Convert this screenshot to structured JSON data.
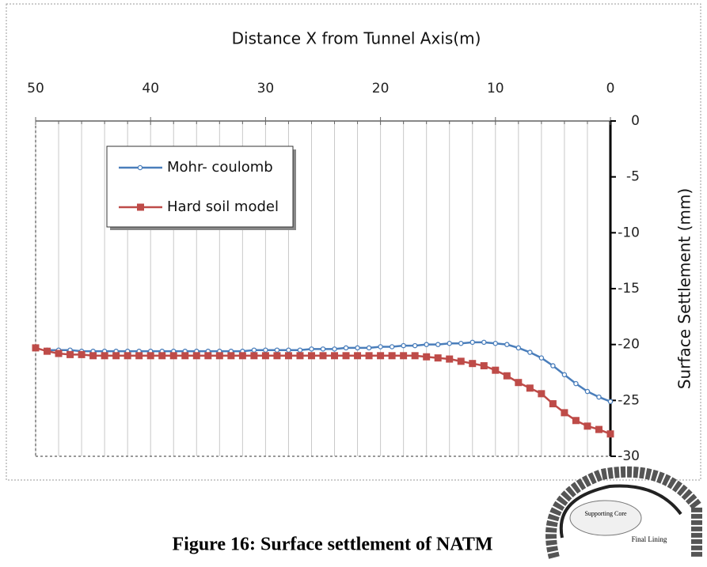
{
  "chart_data": {
    "type": "line",
    "title": "Distance X from Tunnel Axis(m)",
    "y_label": "Surface Settlement (mm)",
    "xlim": [
      50,
      0
    ],
    "xticks": [
      50,
      40,
      30,
      20,
      10,
      0
    ],
    "xminorticks": [
      48,
      46,
      44,
      42,
      38,
      36,
      34,
      32,
      28,
      26,
      24,
      22,
      18,
      16,
      14,
      12,
      8,
      6,
      4,
      2
    ],
    "ylim": [
      0,
      -30
    ],
    "yticks": [
      0,
      -5,
      -10,
      -15,
      -20,
      -25,
      -30
    ],
    "grid": true,
    "legend": "upper left",
    "series": [
      {
        "name": "Mohr- coulomb",
        "color": "#4a7ebb",
        "marker": "circle",
        "x": [
          49,
          48,
          47,
          46,
          45,
          44,
          43,
          42,
          41,
          40,
          39,
          38,
          37,
          36,
          35,
          34,
          33,
          32,
          31,
          30,
          29,
          28,
          27,
          26,
          25,
          24,
          23,
          22,
          21,
          20,
          19,
          18,
          17,
          16,
          15,
          14,
          13,
          12,
          11,
          10,
          9,
          8,
          7,
          6,
          5,
          4,
          3,
          2,
          1,
          0
        ],
        "values": [
          -20.5,
          -20.5,
          -20.5,
          -20.6,
          -20.6,
          -20.6,
          -20.6,
          -20.6,
          -20.6,
          -20.6,
          -20.6,
          -20.6,
          -20.6,
          -20.6,
          -20.6,
          -20.6,
          -20.6,
          -20.6,
          -20.5,
          -20.5,
          -20.5,
          -20.5,
          -20.5,
          -20.4,
          -20.4,
          -20.4,
          -20.3,
          -20.3,
          -20.3,
          -20.2,
          -20.2,
          -20.1,
          -20.1,
          -20.0,
          -20.0,
          -19.9,
          -19.9,
          -19.8,
          -19.8,
          -19.9,
          -20.0,
          -20.3,
          -20.7,
          -21.2,
          -21.9,
          -22.7,
          -23.5,
          -24.2,
          -24.7,
          -25.1
        ]
      },
      {
        "name": "Hard soil model",
        "color": "#be4b48",
        "marker": "square",
        "x": [
          50,
          49,
          48,
          47,
          46,
          45,
          44,
          43,
          42,
          41,
          40,
          39,
          38,
          37,
          36,
          35,
          34,
          33,
          32,
          31,
          30,
          29,
          28,
          27,
          26,
          25,
          24,
          23,
          22,
          21,
          20,
          19,
          18,
          17,
          16,
          15,
          14,
          13,
          12,
          11,
          10,
          9,
          8,
          7,
          6,
          5,
          4,
          3,
          2,
          1,
          0
        ],
        "values": [
          -20.3,
          -20.6,
          -20.8,
          -20.9,
          -20.9,
          -21.0,
          -21.0,
          -21.0,
          -21.0,
          -21.0,
          -21.0,
          -21.0,
          -21.0,
          -21.0,
          -21.0,
          -21.0,
          -21.0,
          -21.0,
          -21.0,
          -21.0,
          -21.0,
          -21.0,
          -21.0,
          -21.0,
          -21.0,
          -21.0,
          -21.0,
          -21.0,
          -21.0,
          -21.0,
          -21.0,
          -21.0,
          -21.0,
          -21.0,
          -21.1,
          -21.2,
          -21.3,
          -21.5,
          -21.7,
          -21.9,
          -22.3,
          -22.8,
          -23.4,
          -23.9,
          -24.4,
          -25.3,
          -26.1,
          -26.8,
          -27.3,
          -27.6,
          -28.0
        ]
      }
    ]
  },
  "caption": "Figure 16: Surface settlement of NATM",
  "inset": {
    "core_label": "Supporting Core",
    "lining_label": "Final Lining"
  }
}
